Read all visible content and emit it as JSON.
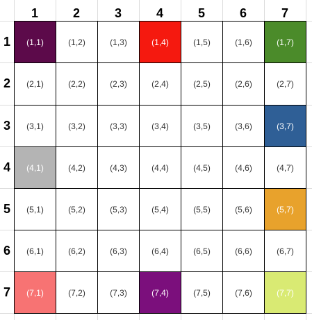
{
  "column_headers": [
    "1",
    "2",
    "3",
    "4",
    "5",
    "6",
    "7"
  ],
  "row_headers": [
    "1",
    "2",
    "3",
    "4",
    "5",
    "6",
    "7"
  ],
  "cells": [
    [
      {
        "label": "(1,1)",
        "fill": "#5c0a4a",
        "text_color": "#ffffff"
      },
      {
        "label": "(1,2)"
      },
      {
        "label": "(1,3)"
      },
      {
        "label": "(1,4)",
        "fill": "#f5190f",
        "text_color": "#ffffff"
      },
      {
        "label": "(1,5)"
      },
      {
        "label": "(1,6)"
      },
      {
        "label": "(1,7)",
        "fill": "#4b8b2a",
        "text_color": "#ffffff"
      }
    ],
    [
      {
        "label": "(2,1)"
      },
      {
        "label": "(2,2)"
      },
      {
        "label": "(2,3)"
      },
      {
        "label": "(2,4)"
      },
      {
        "label": "(2,5)"
      },
      {
        "label": "(2,6)"
      },
      {
        "label": "(2,7)"
      }
    ],
    [
      {
        "label": "(3,1)"
      },
      {
        "label": "(3,2)"
      },
      {
        "label": "(3,3)"
      },
      {
        "label": "(3,4)"
      },
      {
        "label": "(3,5)"
      },
      {
        "label": "(3,6)"
      },
      {
        "label": "(3,7)",
        "fill": "#2f5f96",
        "text_color": "#ffffff"
      }
    ],
    [
      {
        "label": "(4,1)",
        "fill": "#b4b4b4",
        "text_color": "#ffffff"
      },
      {
        "label": "(4,2)"
      },
      {
        "label": "(4,3)"
      },
      {
        "label": "(4,4)"
      },
      {
        "label": "(4,5)"
      },
      {
        "label": "(4,6)"
      },
      {
        "label": "(4,7)"
      }
    ],
    [
      {
        "label": "(5,1)"
      },
      {
        "label": "(5,2)"
      },
      {
        "label": "(5,3)"
      },
      {
        "label": "(5,4)"
      },
      {
        "label": "(5,5)"
      },
      {
        "label": "(5,6)"
      },
      {
        "label": "(5,7)",
        "fill": "#e8a22c",
        "text_color": "#ffffff"
      }
    ],
    [
      {
        "label": "(6,1)"
      },
      {
        "label": "(6,2)"
      },
      {
        "label": "(6,3)"
      },
      {
        "label": "(6,4)"
      },
      {
        "label": "(6,5)"
      },
      {
        "label": "(6,6)"
      },
      {
        "label": "(6,7)"
      }
    ],
    [
      {
        "label": "(7,1)",
        "fill": "#f77373",
        "text_color": "#ffffff"
      },
      {
        "label": "(7,2)"
      },
      {
        "label": "(7,3)"
      },
      {
        "label": "(7,4)",
        "fill": "#7b0f7c",
        "text_color": "#ffffff"
      },
      {
        "label": "(7,5)"
      },
      {
        "label": "(7,6)"
      },
      {
        "label": "(7,7)",
        "fill": "#d9ea73",
        "text_color": "#ffffff"
      }
    ]
  ]
}
